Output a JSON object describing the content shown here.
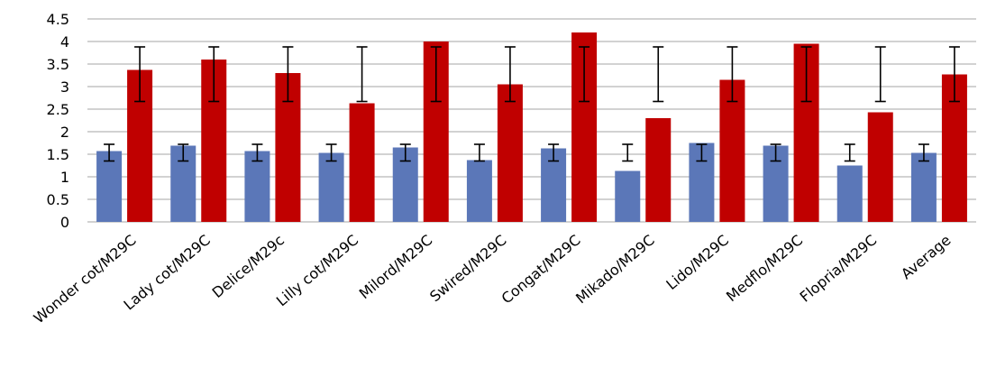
{
  "chart_data": {
    "type": "bar",
    "title": "",
    "xlabel": "",
    "ylabel": "",
    "ylim": [
      0,
      4.5
    ],
    "yticks": [
      "0",
      "0.5",
      "1",
      "1.5",
      "2",
      "2.5",
      "3",
      "3.5",
      "4",
      "4.5"
    ],
    "grid": true,
    "legend": "none",
    "categories": [
      "Wonder cot/M29C",
      "Lady cot/M29C",
      "Delice/M29c",
      "Lilly cot/M29C",
      "Milord/M29C",
      "Swired/M29C",
      "Congat/M29C",
      "Mikado/M29C",
      "Lido/M29C",
      "Medflo/M29C",
      "Flopria/M29C",
      "Average"
    ],
    "series": [
      {
        "color": "#5b77b8",
        "values": [
          1.57,
          1.69,
          1.57,
          1.53,
          1.65,
          1.37,
          1.63,
          1.13,
          1.75,
          1.69,
          1.25,
          1.53
        ],
        "error_low": [
          1.35,
          1.35,
          1.35,
          1.35,
          1.35,
          1.35,
          1.35,
          1.35,
          1.35,
          1.35,
          1.35,
          1.35
        ],
        "error_high": [
          1.72,
          1.72,
          1.72,
          1.72,
          1.72,
          1.72,
          1.72,
          1.72,
          1.72,
          1.72,
          1.72,
          1.72
        ]
      },
      {
        "color": "#c00000",
        "values": [
          3.37,
          3.6,
          3.3,
          2.63,
          4.0,
          3.05,
          4.2,
          2.3,
          3.15,
          3.95,
          2.43,
          3.27
        ],
        "error_low": [
          2.67,
          2.67,
          2.67,
          2.67,
          2.67,
          2.67,
          2.67,
          2.67,
          2.67,
          2.67,
          2.67,
          2.67
        ],
        "error_high": [
          3.88,
          3.88,
          3.88,
          3.88,
          3.88,
          3.88,
          3.88,
          3.88,
          3.88,
          3.88,
          3.88,
          3.88
        ]
      }
    ]
  }
}
